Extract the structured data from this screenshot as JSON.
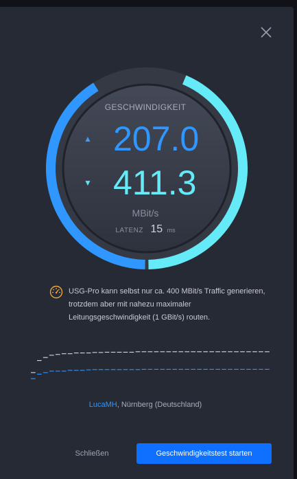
{
  "gauge": {
    "label": "GESCHWINDIGKEIT",
    "upload": "207.0",
    "download": "411.3",
    "unit": "MBit/s",
    "latency_label": "LATENZ",
    "latency_value": "15",
    "latency_unit": "ms",
    "upload_fraction": 0.5,
    "download_fraction": 0.5,
    "colors": {
      "upload": "#2f97ff",
      "download": "#65eaf7",
      "track": "#3a3e4b"
    }
  },
  "notice": {
    "icon": "gauge-warning-icon",
    "text": "USG-Pro kann selbst nur ca. 400 MBit/s Traffic generieren, trotzdem aber mit nahezu maximaler Leitungsgeschwindigkeit (1 GBit/s) routen."
  },
  "server": {
    "user": "LucaMH",
    "location": ", Nürnberg (Deutschland)"
  },
  "actions": {
    "close_label": "Schließen",
    "start_label": "Geschwindigkeitstest starten"
  },
  "history": {
    "upload": [
      5,
      8,
      9,
      10,
      10,
      10,
      10.5,
      10.5,
      10.5,
      10.8,
      11,
      11,
      11,
      11,
      11,
      11,
      11,
      11,
      11.2,
      11.2,
      11.2,
      11.2,
      11.2,
      11.2,
      11.2,
      11.2,
      11.2,
      11.2,
      11.2,
      11.2,
      11.2,
      11.2,
      11.2,
      11.2,
      11.2,
      11.2,
      11.2,
      11.2,
      11.2,
      11.2
    ],
    "download": [
      9,
      17,
      19,
      20.5,
      21,
      21.5,
      21.5,
      22,
      22,
      22,
      22.3,
      22.3,
      22.5,
      22.5,
      22.5,
      22.5,
      22.5,
      22.8,
      22.8,
      22.8,
      22.8,
      22.8,
      22.8,
      22.8,
      22.8,
      22.8,
      22.8,
      22.8,
      22.8,
      22.8,
      22.8,
      22.8,
      22.8,
      22.8,
      22.8,
      22.8,
      22.8,
      22.8,
      22.8,
      22.8
    ]
  }
}
